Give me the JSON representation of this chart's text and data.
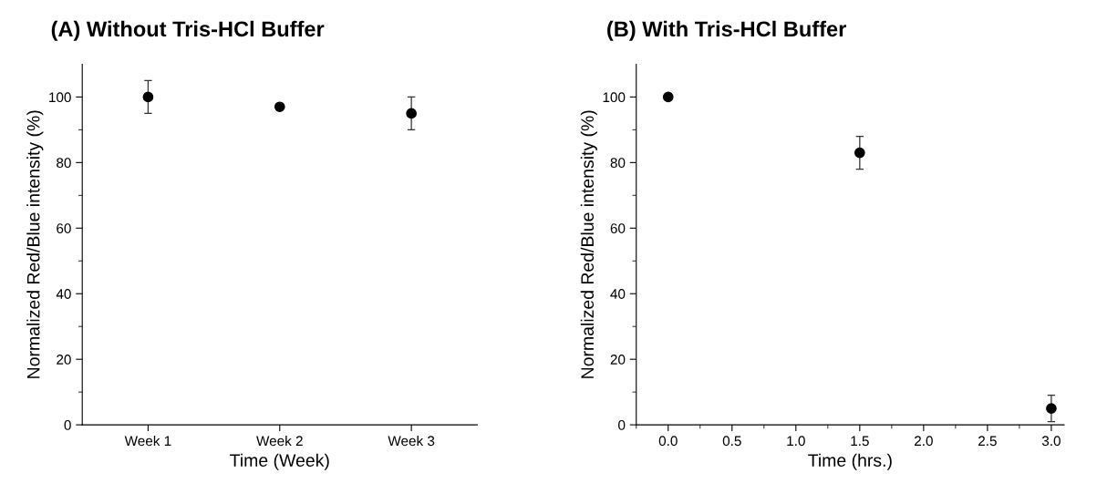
{
  "chart_data": [
    {
      "type": "scatter",
      "title": "(A) Without Tris-HCl Buffer",
      "xlabel": "Time (Week)",
      "ylabel": "Normalized Red/Blue intensity (%)",
      "categories": [
        "Week 1",
        "Week 2",
        "Week 3"
      ],
      "values": [
        100,
        97,
        95
      ],
      "errors": [
        5,
        null,
        5
      ],
      "color": "#000000",
      "marker": "circle",
      "ylim": [
        0,
        110
      ],
      "yticks": [
        0,
        {
          "value": 10,
          "label": null
        },
        20,
        {
          "value": 30,
          "label": null
        },
        40,
        {
          "value": 50,
          "label": null
        },
        60,
        {
          "value": 70,
          "label": null
        },
        80,
        {
          "value": 90,
          "label": null
        },
        100
      ],
      "grid": false
    },
    {
      "type": "scatter",
      "title": "(B) With Tris-HCl Buffer",
      "xlabel": "Time (hrs.)",
      "ylabel": "Normalized Red/Blue intensity (%)",
      "x": [
        0.0,
        1.5,
        3.0
      ],
      "values": [
        100,
        83,
        5
      ],
      "errors": [
        null,
        5,
        4
      ],
      "color": "#000000",
      "marker": "circle",
      "xlim": [
        -0.25,
        3.1
      ],
      "xticks": [
        {
          "value": -0.25,
          "label": null
        },
        {
          "value": 0,
          "label": "0.0"
        },
        {
          "value": 0.25,
          "label": null
        },
        0.5,
        {
          "value": 0.75,
          "label": null
        },
        {
          "value": 1,
          "label": "1.0"
        },
        {
          "value": 1.25,
          "label": null
        },
        1.5,
        {
          "value": 1.75,
          "label": null
        },
        {
          "value": 2,
          "label": "2.0"
        },
        {
          "value": 2.25,
          "label": null
        },
        2.5,
        {
          "value": 2.75,
          "label": null
        },
        {
          "value": 3,
          "label": "3.0"
        }
      ],
      "ylim": [
        0,
        110
      ],
      "yticks": [
        0,
        {
          "value": 10,
          "label": null
        },
        20,
        {
          "value": 30,
          "label": null
        },
        40,
        {
          "value": 50,
          "label": null
        },
        60,
        {
          "value": 70,
          "label": null
        },
        80,
        {
          "value": 90,
          "label": null
        },
        100
      ],
      "grid": false
    }
  ]
}
